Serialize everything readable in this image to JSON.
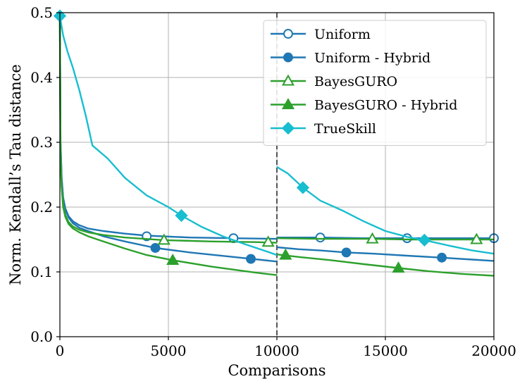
{
  "chart_data": {
    "type": "line",
    "title": "",
    "xlabel": "Comparisons",
    "ylabel": "Norm. Kendall’s Tau distance",
    "xlim": [
      0,
      20000
    ],
    "ylim": [
      0.0,
      0.5
    ],
    "x_ticks": [
      0,
      5000,
      10000,
      15000,
      20000
    ],
    "x_tick_labels": [
      "0",
      "5000",
      "10000",
      "15000",
      "20000"
    ],
    "y_ticks": [
      0.0,
      0.1,
      0.2,
      0.3,
      0.4,
      0.5
    ],
    "y_tick_labels": [
      "0.0",
      "0.1",
      "0.2",
      "0.3",
      "0.4",
      "0.5"
    ],
    "grid": true,
    "legend_position": "top-right",
    "vertical_line": {
      "x": 10000,
      "style": "dashed",
      "color": "#555555"
    },
    "series": [
      {
        "name": "Uniform",
        "color": "#1f77b4",
        "marker": "circle-open",
        "segments": [
          [
            [
              0,
              0.49
            ],
            [
              30,
              0.3
            ],
            [
              80,
              0.245
            ],
            [
              150,
              0.215
            ],
            [
              250,
              0.198
            ],
            [
              400,
              0.186
            ],
            [
              600,
              0.178
            ],
            [
              900,
              0.172
            ],
            [
              1300,
              0.167
            ],
            [
              2000,
              0.163
            ],
            [
              3000,
              0.159
            ],
            [
              4000,
              0.156
            ],
            [
              6000,
              0.153
            ],
            [
              8000,
              0.152
            ],
            [
              10000,
              0.151
            ]
          ],
          [
            [
              10000,
              0.153
            ],
            [
              12000,
              0.153
            ],
            [
              14000,
              0.152
            ],
            [
              16000,
              0.152
            ],
            [
              18000,
              0.152
            ],
            [
              20000,
              0.152
            ]
          ]
        ],
        "markers": [
          [
            4000,
            0.155
          ],
          [
            8000,
            0.152
          ],
          [
            12000,
            0.153
          ],
          [
            16000,
            0.152
          ],
          [
            20000,
            0.152
          ]
        ]
      },
      {
        "name": "Uniform - Hybrid",
        "color": "#1f77b4",
        "marker": "circle-filled",
        "segments": [
          [
            [
              0,
              0.49
            ],
            [
              30,
              0.3
            ],
            [
              80,
              0.245
            ],
            [
              150,
              0.212
            ],
            [
              250,
              0.196
            ],
            [
              400,
              0.184
            ],
            [
              600,
              0.175
            ],
            [
              900,
              0.168
            ],
            [
              1300,
              0.163
            ],
            [
              2000,
              0.155
            ],
            [
              3000,
              0.147
            ],
            [
              4400,
              0.137
            ],
            [
              6000,
              0.13
            ],
            [
              8000,
              0.123
            ],
            [
              10000,
              0.116
            ]
          ],
          [
            [
              10000,
              0.138
            ],
            [
              11000,
              0.135
            ],
            [
              12000,
              0.133
            ],
            [
              13200,
              0.13
            ],
            [
              14500,
              0.128
            ],
            [
              16000,
              0.125
            ],
            [
              17600,
              0.122
            ],
            [
              19000,
              0.119
            ],
            [
              20000,
              0.117
            ]
          ]
        ],
        "markers": [
          [
            4400,
            0.137
          ],
          [
            8800,
            0.12
          ],
          [
            13200,
            0.13
          ],
          [
            17600,
            0.122
          ]
        ]
      },
      {
        "name": "BayesGURO",
        "color": "#2ca02c",
        "marker": "triangle-open",
        "segments": [
          [
            [
              0,
              0.49
            ],
            [
              30,
              0.28
            ],
            [
              80,
              0.232
            ],
            [
              150,
              0.205
            ],
            [
              250,
              0.188
            ],
            [
              400,
              0.177
            ],
            [
              600,
              0.17
            ],
            [
              900,
              0.165
            ],
            [
              1300,
              0.161
            ],
            [
              2000,
              0.157
            ],
            [
              3000,
              0.153
            ],
            [
              4800,
              0.149
            ],
            [
              7000,
              0.147
            ],
            [
              9000,
              0.146
            ],
            [
              10000,
              0.145
            ]
          ],
          [
            [
              10000,
              0.152
            ],
            [
              12000,
              0.151
            ],
            [
              14400,
              0.151
            ],
            [
              16000,
              0.15
            ],
            [
              18000,
              0.15
            ],
            [
              20000,
              0.15
            ]
          ]
        ],
        "markers": [
          [
            4800,
            0.149
          ],
          [
            9600,
            0.146
          ],
          [
            14400,
            0.151
          ],
          [
            19200,
            0.15
          ]
        ]
      },
      {
        "name": "BayesGURO - Hybrid",
        "color": "#2ca02c",
        "marker": "triangle-filled",
        "segments": [
          [
            [
              0,
              0.49
            ],
            [
              30,
              0.28
            ],
            [
              80,
              0.23
            ],
            [
              150,
              0.2
            ],
            [
              250,
              0.185
            ],
            [
              400,
              0.174
            ],
            [
              600,
              0.167
            ],
            [
              900,
              0.161
            ],
            [
              1300,
              0.155
            ],
            [
              2000,
              0.147
            ],
            [
              3000,
              0.136
            ],
            [
              4000,
              0.126
            ],
            [
              5200,
              0.118
            ],
            [
              7000,
              0.108
            ],
            [
              9000,
              0.099
            ],
            [
              10000,
              0.095
            ]
          ],
          [
            [
              10000,
              0.127
            ],
            [
              11000,
              0.123
            ],
            [
              12500,
              0.118
            ],
            [
              14000,
              0.112
            ],
            [
              15600,
              0.106
            ],
            [
              17000,
              0.101
            ],
            [
              18500,
              0.097
            ],
            [
              20000,
              0.094
            ]
          ]
        ],
        "markers": [
          [
            5200,
            0.118
          ],
          [
            10400,
            0.126
          ],
          [
            15600,
            0.106
          ]
        ]
      },
      {
        "name": "TrueSkill",
        "color": "#17becf",
        "marker": "diamond-filled",
        "segments": [
          [
            [
              0,
              0.495
            ],
            [
              150,
              0.465
            ],
            [
              350,
              0.44
            ],
            [
              600,
              0.415
            ],
            [
              900,
              0.38
            ],
            [
              1200,
              0.34
            ],
            [
              1500,
              0.295
            ],
            [
              2200,
              0.275
            ],
            [
              3000,
              0.245
            ],
            [
              4000,
              0.218
            ],
            [
              5000,
              0.2
            ],
            [
              5600,
              0.187
            ],
            [
              6500,
              0.17
            ],
            [
              7500,
              0.155
            ],
            [
              8500,
              0.143
            ],
            [
              9500,
              0.132
            ],
            [
              10000,
              0.126
            ]
          ],
          [
            [
              10000,
              0.262
            ],
            [
              10500,
              0.252
            ],
            [
              11200,
              0.23
            ],
            [
              12000,
              0.21
            ],
            [
              13000,
              0.195
            ],
            [
              14000,
              0.178
            ],
            [
              15000,
              0.163
            ],
            [
              16000,
              0.154
            ],
            [
              16800,
              0.149
            ],
            [
              18000,
              0.14
            ],
            [
              19000,
              0.133
            ],
            [
              20000,
              0.128
            ]
          ]
        ],
        "markers": [
          [
            0,
            0.495
          ],
          [
            5600,
            0.187
          ],
          [
            11200,
            0.23
          ],
          [
            16800,
            0.149
          ]
        ]
      }
    ]
  }
}
